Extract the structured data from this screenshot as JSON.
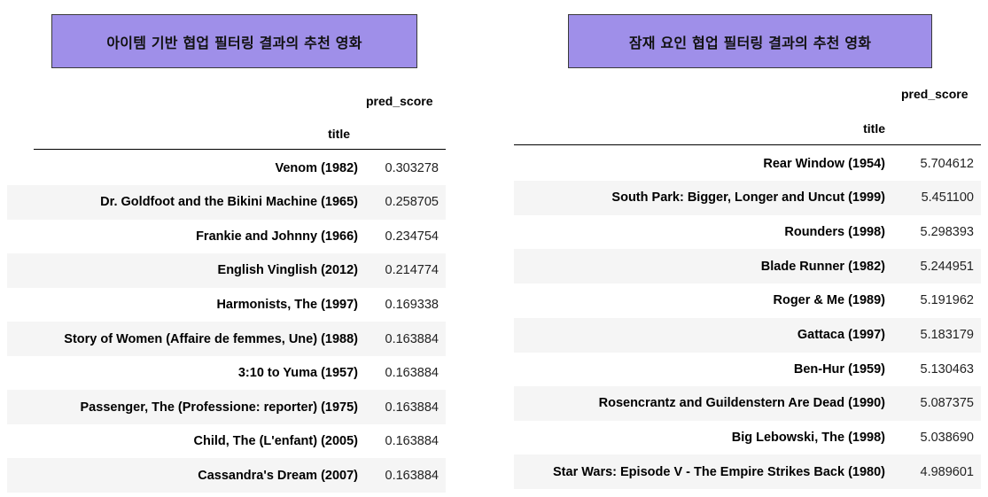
{
  "left": {
    "heading": "아이템 기반 협업 필터링 결과의 추천 영화",
    "column_header": "pred_score",
    "index_header": "title",
    "rows": [
      {
        "title": "Venom (1982)",
        "score": "0.303278"
      },
      {
        "title": "Dr. Goldfoot and the Bikini Machine (1965)",
        "score": "0.258705"
      },
      {
        "title": "Frankie and Johnny (1966)",
        "score": "0.234754"
      },
      {
        "title": "English Vinglish (2012)",
        "score": "0.214774"
      },
      {
        "title": "Harmonists, The (1997)",
        "score": "0.169338"
      },
      {
        "title": "Story of Women (Affaire de femmes, Une) (1988)",
        "score": "0.163884"
      },
      {
        "title": "3:10 to Yuma (1957)",
        "score": "0.163884"
      },
      {
        "title": "Passenger, The (Professione: reporter) (1975)",
        "score": "0.163884"
      },
      {
        "title": "Child, The (L'enfant) (2005)",
        "score": "0.163884"
      },
      {
        "title": "Cassandra's Dream (2007)",
        "score": "0.163884"
      }
    ]
  },
  "right": {
    "heading": "잠재 요인 협업 필터링 결과의 추천 영화",
    "column_header": "pred_score",
    "index_header": "title",
    "rows": [
      {
        "title": "Rear Window (1954)",
        "score": "5.704612"
      },
      {
        "title": "South Park: Bigger, Longer and Uncut (1999)",
        "score": "5.451100"
      },
      {
        "title": "Rounders (1998)",
        "score": "5.298393"
      },
      {
        "title": "Blade Runner (1982)",
        "score": "5.244951"
      },
      {
        "title": "Roger & Me (1989)",
        "score": "5.191962"
      },
      {
        "title": "Gattaca (1997)",
        "score": "5.183179"
      },
      {
        "title": "Ben-Hur (1959)",
        "score": "5.130463"
      },
      {
        "title": "Rosencrantz and Guildenstern Are Dead (1990)",
        "score": "5.087375"
      },
      {
        "title": "Big Lebowski, The (1998)",
        "score": "5.038690"
      },
      {
        "title": "Star Wars: Episode V - The Empire Strikes Back (1980)",
        "score": "4.989601"
      }
    ]
  },
  "colors": {
    "heading_bg": "#9f8fe9",
    "stripe": "#f5f5f5"
  }
}
